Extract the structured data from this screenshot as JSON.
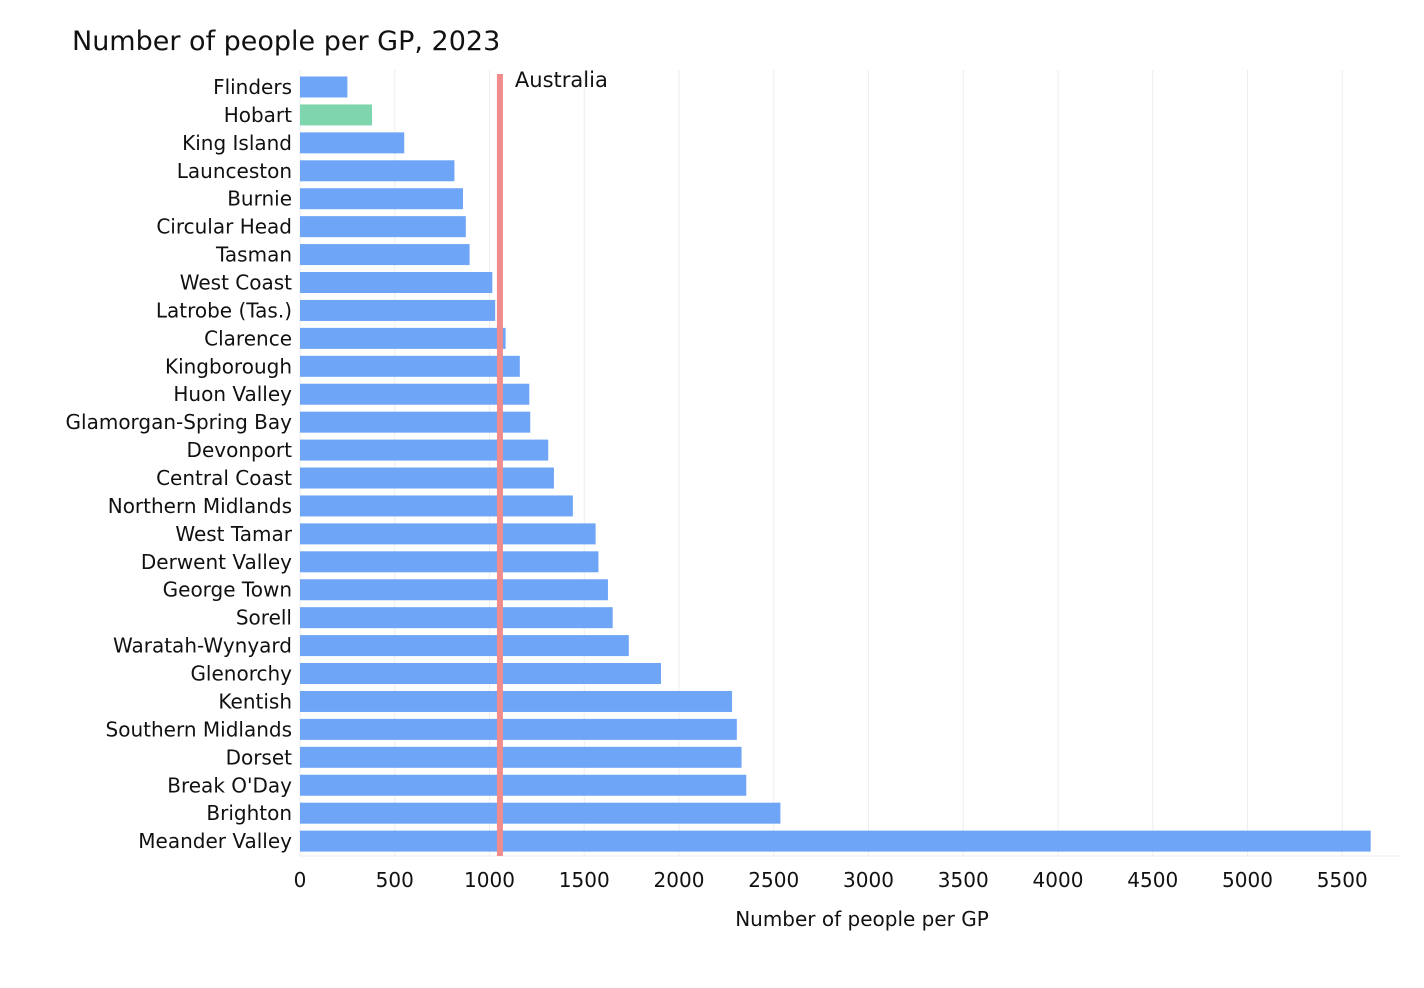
{
  "chart_data": {
    "type": "bar",
    "orientation": "horizontal",
    "title": "Number of people per GP, 2023",
    "xlabel": "Number of people per GP",
    "ylabel": "",
    "xlim": [
      0,
      5700
    ],
    "xticks": [
      0,
      500,
      1000,
      1500,
      2000,
      2500,
      3000,
      3500,
      4000,
      4500,
      5000,
      5500
    ],
    "grid": "vertical",
    "categories": [
      "Flinders",
      "Hobart",
      "King Island",
      "Launceston",
      "Burnie",
      "Circular Head",
      "Tasman",
      "West Coast",
      "Latrobe (Tas.)",
      "Clarence",
      "Kingborough",
      "Huon Valley",
      "Glamorgan-Spring Bay",
      "Devonport",
      "Central Coast",
      "Northern Midlands",
      "West Tamar",
      "Derwent Valley",
      "George Town",
      "Sorell",
      "Waratah-Wynyard",
      "Glenorchy",
      "Kentish",
      "Southern Midlands",
      "Dorset",
      "Break O'Day",
      "Brighton",
      "Meander Valley"
    ],
    "values": [
      250,
      380,
      550,
      815,
      860,
      875,
      895,
      1015,
      1030,
      1085,
      1160,
      1210,
      1215,
      1310,
      1340,
      1440,
      1560,
      1575,
      1625,
      1650,
      1735,
      1905,
      2280,
      2305,
      2330,
      2355,
      2535,
      5650
    ],
    "highlight": "Hobart",
    "colors": {
      "bar": "#6ea5f7",
      "highlight": "#7fd6ae",
      "reference": "#f08c8c"
    },
    "reference_line": {
      "label": "Australia",
      "value": 1055
    }
  }
}
